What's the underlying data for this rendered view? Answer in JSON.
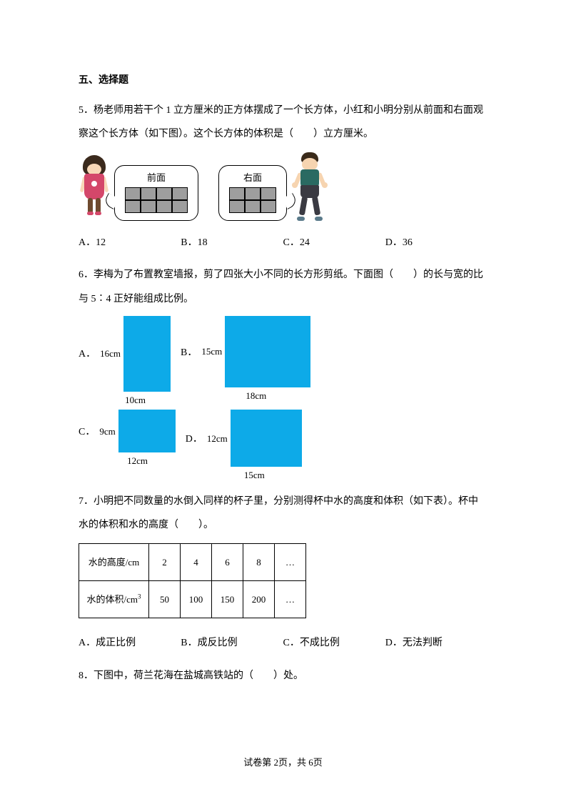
{
  "section_title": "五、选择题",
  "q5": {
    "text": "5．杨老师用若干个 1 立方厘米的正方体摆成了一个长方体，小红和小明分别从前面和右面观察这个长方体（如下图）。这个长方体的体积是（　　）立方厘米。",
    "front_label": "前面",
    "right_label": "右面",
    "front_grid": {
      "cols": 4,
      "rows": 2,
      "cell_fill": "#9e9e9e"
    },
    "right_grid": {
      "cols": 3,
      "rows": 2,
      "cell_fill": "#9e9e9e"
    },
    "options": {
      "A": "A．12",
      "B": "B．18",
      "C": "C．24",
      "D": "D．36"
    }
  },
  "q6": {
    "text": "6．李梅为了布置教室墙报，剪了四张大小不同的长方形剪纸。下面图（　　）的长与宽的比与 5∶4 正好能组成比例。",
    "fill_color": "#0daae8",
    "opts": {
      "A": {
        "letter": "A．",
        "side": "16cm",
        "bottom": "10cm"
      },
      "B": {
        "letter": "B．",
        "side": "15cm",
        "bottom": "18cm"
      },
      "C": {
        "letter": "C．",
        "side": "9cm",
        "bottom": "12cm"
      },
      "D": {
        "letter": "D．",
        "side": "12cm",
        "bottom": "15cm"
      }
    }
  },
  "q7": {
    "text": "7．小明把不同数量的水倒入同样的杯子里，分别测得杯中水的高度和体积（如下表）。杯中水的体积和水的高度（　　）。",
    "table": {
      "row1_label": "水的高度/cm",
      "row1": [
        "2",
        "4",
        "6",
        "8",
        "…"
      ],
      "row2_label": "水的体积/cm³",
      "row2": [
        "50",
        "100",
        "150",
        "200",
        "…"
      ]
    },
    "options": {
      "A": "A．成正比例",
      "B": "B．成反比例",
      "C": "C．不成比例",
      "D": "D．无法判断"
    }
  },
  "q8": {
    "text": "8．下图中，荷兰花海在盐城高铁站的（　　）处。"
  },
  "footer": "试卷第 2页，共 6页"
}
